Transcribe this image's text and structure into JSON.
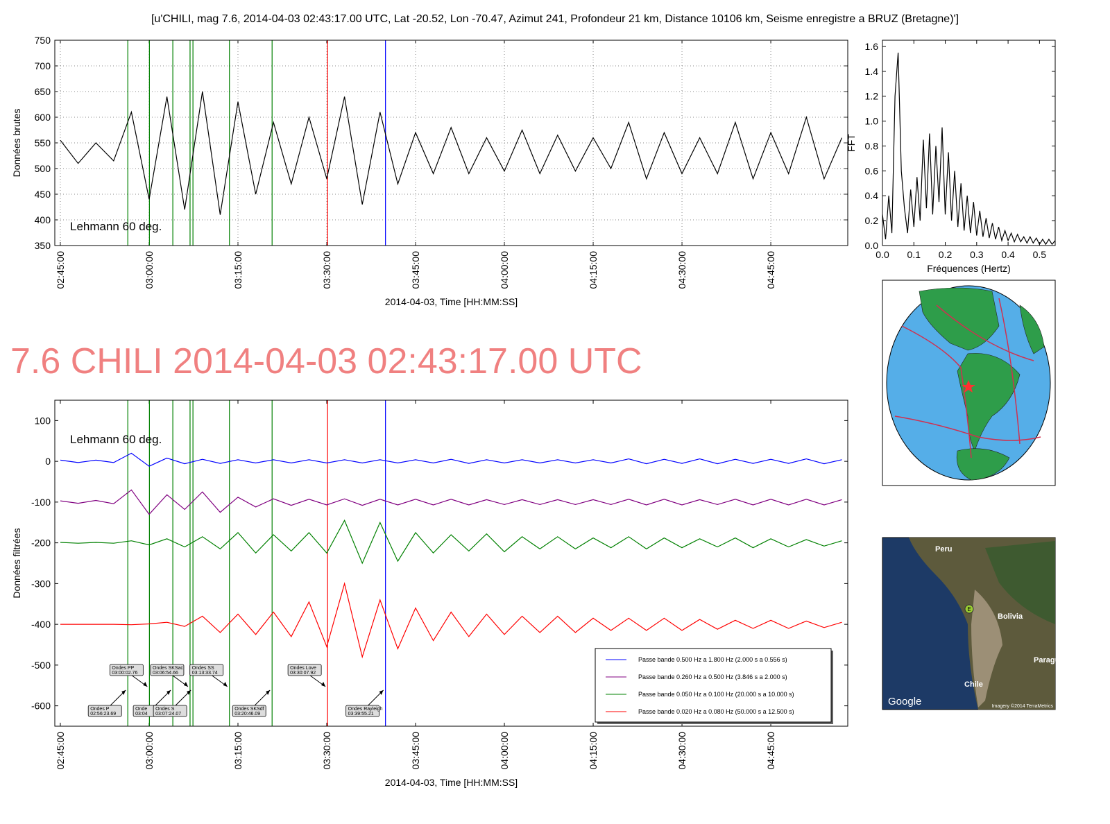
{
  "title": "[u'CHILI, mag 7.6, 2014-04-03 02:43:17.00 UTC, Lat -20.52, Lon -70.47, Azimut 241, Profondeur 21 km, Distance 10106 km, Seisme enregistre a BRUZ (Bretagne)']",
  "headline": "7.6 CHILI 2014-04-03 02:43:17.00 UTC",
  "phases": [
    {
      "name": "Ondes P",
      "time": "02:56:23.69",
      "color": "#008000"
    },
    {
      "name": "Ondes PP",
      "time": "03:00:02.76",
      "color": "#008000"
    },
    {
      "name": "Onde",
      "time": "03:04",
      "color": "#008000"
    },
    {
      "name": "Ondes SKSac",
      "time": "03:06:54.66",
      "color": "#008000"
    },
    {
      "name": "Ondes S",
      "time": "03:07:24.07",
      "color": "#008000"
    },
    {
      "name": "Ondes SS",
      "time": "03:13:33.74",
      "color": "#008000"
    },
    {
      "name": "Ondes SKSdf",
      "time": "03:20:46.09",
      "color": "#008000"
    },
    {
      "name": "Ondes Love",
      "time": "03:30:07.92",
      "color": "#ff0000"
    },
    {
      "name": "Ondes Rayleigh",
      "time": "03:39:55.21",
      "color": "#0000ff"
    }
  ],
  "satellite_map": {
    "labels": [
      "Peru",
      "Bolivia",
      "Paragu",
      "Chile"
    ],
    "marker": "E",
    "logo": "Google",
    "credit": "Imagery ©2014 TerraMetrics"
  },
  "chart_data": [
    {
      "type": "line",
      "ylabel": "Données brutes",
      "xlabel": "2014-04-03, Time [HH:MM:SS]",
      "time_axis": true,
      "grid": true,
      "show_phases": true,
      "annotation": {
        "text": "Lehmann 60 deg.",
        "color": "#f08080"
      },
      "xlim": [
        "02:44:04",
        "04:58:00"
      ],
      "xticks": [
        "02:45:00",
        "03:00:00",
        "03:15:00",
        "03:30:00",
        "03:45:00",
        "04:00:00",
        "04:15:00",
        "04:30:00",
        "04:45:00"
      ],
      "ylim": [
        350,
        750
      ],
      "yticks": [
        350,
        400,
        450,
        500,
        550,
        600,
        650,
        700,
        750
      ],
      "x": [
        "02:45:00",
        "02:48:00",
        "02:51:00",
        "02:54:00",
        "02:57:00",
        "03:00:00",
        "03:03:00",
        "03:06:00",
        "03:09:00",
        "03:12:00",
        "03:15:00",
        "03:18:00",
        "03:21:00",
        "03:24:00",
        "03:27:00",
        "03:30:00",
        "03:33:00",
        "03:36:00",
        "03:39:00",
        "03:42:00",
        "03:45:00",
        "03:48:00",
        "03:51:00",
        "03:54:00",
        "03:57:00",
        "04:00:00",
        "04:03:00",
        "04:06:00",
        "04:09:00",
        "04:12:00",
        "04:15:00",
        "04:18:00",
        "04:21:00",
        "04:24:00",
        "04:27:00",
        "04:30:00",
        "04:33:00",
        "04:36:00",
        "04:39:00",
        "04:42:00",
        "04:45:00",
        "04:48:00",
        "04:51:00",
        "04:54:00",
        "04:57:00"
      ],
      "series": [
        {
          "color": "#000000",
          "values": [
            555,
            510,
            550,
            515,
            610,
            440,
            640,
            420,
            650,
            410,
            630,
            450,
            590,
            470,
            600,
            480,
            640,
            430,
            610,
            470,
            570,
            490,
            580,
            490,
            560,
            495,
            575,
            490,
            565,
            495,
            560,
            500,
            590,
            480,
            570,
            490,
            560,
            490,
            590,
            480,
            570,
            490,
            600,
            480,
            560
          ]
        }
      ]
    },
    {
      "type": "line",
      "ylabel": "FFT",
      "xlabel": "Fréquences (Hertz)",
      "grid": false,
      "xlim": [
        0,
        0.55
      ],
      "xticks": [
        {
          "value": 0,
          "label": "0.0"
        },
        0.1,
        0.2,
        0.3,
        0.4,
        0.5
      ],
      "ylim": [
        0,
        1.65
      ],
      "yticks": [
        {
          "value": 0,
          "label": "0.0"
        },
        0.2,
        0.4,
        0.6,
        0.8,
        {
          "value": 1,
          "label": "1.0"
        },
        1.2,
        1.4,
        1.6
      ],
      "x": [
        0,
        0.01,
        0.02,
        0.03,
        0.04,
        0.05,
        0.06,
        0.07,
        0.08,
        0.09,
        0.1,
        0.11,
        0.12,
        0.13,
        0.14,
        0.15,
        0.16,
        0.17,
        0.18,
        0.19,
        0.2,
        0.21,
        0.22,
        0.23,
        0.24,
        0.25,
        0.26,
        0.27,
        0.28,
        0.29,
        0.3,
        0.31,
        0.32,
        0.33,
        0.34,
        0.35,
        0.36,
        0.37,
        0.38,
        0.39,
        0.4,
        0.41,
        0.42,
        0.43,
        0.44,
        0.45,
        0.46,
        0.47,
        0.48,
        0.49,
        0.5,
        0.51,
        0.52,
        0.53,
        0.54,
        0.55
      ],
      "series": [
        {
          "color": "#000000",
          "values": [
            0.25,
            0.05,
            0.4,
            0.1,
            1.2,
            1.55,
            0.6,
            0.3,
            0.1,
            0.45,
            0.15,
            0.55,
            0.2,
            0.85,
            0.3,
            0.9,
            0.25,
            0.8,
            0.35,
            0.95,
            0.25,
            0.75,
            0.2,
            0.6,
            0.15,
            0.5,
            0.12,
            0.4,
            0.1,
            0.35,
            0.08,
            0.28,
            0.07,
            0.22,
            0.06,
            0.18,
            0.05,
            0.15,
            0.04,
            0.12,
            0.04,
            0.1,
            0.03,
            0.09,
            0.03,
            0.07,
            0.02,
            0.07,
            0.02,
            0.06,
            0.01,
            0.05,
            0.01,
            0.05,
            0.01,
            0.04
          ]
        }
      ]
    },
    {
      "type": "line",
      "ylabel": "Données filtrées",
      "xlabel": "2014-04-03, Time [HH:MM:SS]",
      "time_axis": true,
      "grid": false,
      "show_phases": true,
      "phase_labels": true,
      "legend": "lower right",
      "annotation": {
        "text": "Lehmann 60 deg.",
        "color": "#800080"
      },
      "xlim": [
        "02:44:04",
        "04:58:00"
      ],
      "xticks": [
        "02:45:00",
        "03:00:00",
        "03:15:00",
        "03:30:00",
        "03:45:00",
        "04:00:00",
        "04:15:00",
        "04:30:00",
        "04:45:00"
      ],
      "ylim": [
        -650,
        150
      ],
      "yticks": [
        -600,
        -500,
        -400,
        -300,
        -200,
        -100,
        0,
        100
      ],
      "x": [
        "02:45:00",
        "02:48:00",
        "02:51:00",
        "02:54:00",
        "02:57:00",
        "03:00:00",
        "03:03:00",
        "03:06:00",
        "03:09:00",
        "03:12:00",
        "03:15:00",
        "03:18:00",
        "03:21:00",
        "03:24:00",
        "03:27:00",
        "03:30:00",
        "03:33:00",
        "03:36:00",
        "03:39:00",
        "03:42:00",
        "03:45:00",
        "03:48:00",
        "03:51:00",
        "03:54:00",
        "03:57:00",
        "04:00:00",
        "04:03:00",
        "04:06:00",
        "04:09:00",
        "04:12:00",
        "04:15:00",
        "04:18:00",
        "04:21:00",
        "04:24:00",
        "04:27:00",
        "04:30:00",
        "04:33:00",
        "04:36:00",
        "04:39:00",
        "04:42:00",
        "04:45:00",
        "04:48:00",
        "04:51:00",
        "04:54:00",
        "04:57:00"
      ],
      "series": [
        {
          "name": "Passe bande 0.500 Hz a 1.800 Hz (2.000 s a 0.556 s)",
          "color": "#0000ff",
          "values": [
            3,
            -3,
            3,
            -3,
            20,
            -12,
            8,
            -6,
            5,
            -5,
            4,
            -4,
            4,
            -4,
            4,
            -4,
            4,
            -4,
            4,
            -4,
            4,
            -4,
            5,
            -5,
            4,
            -4,
            4,
            -4,
            4,
            -4,
            4,
            -4,
            6,
            -6,
            5,
            -5,
            6,
            -6,
            5,
            -5,
            5,
            -5,
            6,
            -6,
            4
          ]
        },
        {
          "name": "Passe bande 0.260 Hz a 0.500 Hz (3.846 s a 2.000 s)",
          "color": "#800080",
          "values": [
            -97,
            -103,
            -96,
            -104,
            -70,
            -130,
            -82,
            -118,
            -75,
            -125,
            -88,
            -112,
            -92,
            -108,
            -93,
            -107,
            -92,
            -108,
            -93,
            -107,
            -93,
            -107,
            -93,
            -107,
            -94,
            -106,
            -94,
            -106,
            -94,
            -106,
            -94,
            -106,
            -93,
            -107,
            -93,
            -107,
            -94,
            -106,
            -93,
            -107,
            -93,
            -107,
            -93,
            -107,
            -94
          ]
        },
        {
          "name": "Passe bande 0.050 Hz a 0.100 Hz (20.000 s a 10.000 s)",
          "color": "#008000",
          "values": [
            -199,
            -201,
            -199,
            -201,
            -195,
            -205,
            -190,
            -210,
            -185,
            -215,
            -175,
            -225,
            -180,
            -220,
            -175,
            -225,
            -145,
            -250,
            -150,
            -245,
            -175,
            -225,
            -180,
            -220,
            -178,
            -222,
            -185,
            -215,
            -185,
            -215,
            -188,
            -212,
            -185,
            -215,
            -188,
            -212,
            -190,
            -210,
            -188,
            -212,
            -190,
            -210,
            -192,
            -208,
            -195
          ]
        },
        {
          "name": "Passe bande 0.020 Hz a 0.080 Hz (50.000 s a 12.500 s)",
          "color": "#ff0000",
          "values": [
            -400,
            -400,
            -400,
            -400,
            -401,
            -399,
            -395,
            -405,
            -380,
            -420,
            -375,
            -425,
            -370,
            -430,
            -345,
            -455,
            -300,
            -480,
            -340,
            -460,
            -360,
            -440,
            -370,
            -430,
            -375,
            -425,
            -380,
            -420,
            -380,
            -420,
            -385,
            -415,
            -385,
            -415,
            -385,
            -415,
            -388,
            -412,
            -390,
            -410,
            -390,
            -410,
            -392,
            -408,
            -395
          ]
        }
      ]
    }
  ]
}
